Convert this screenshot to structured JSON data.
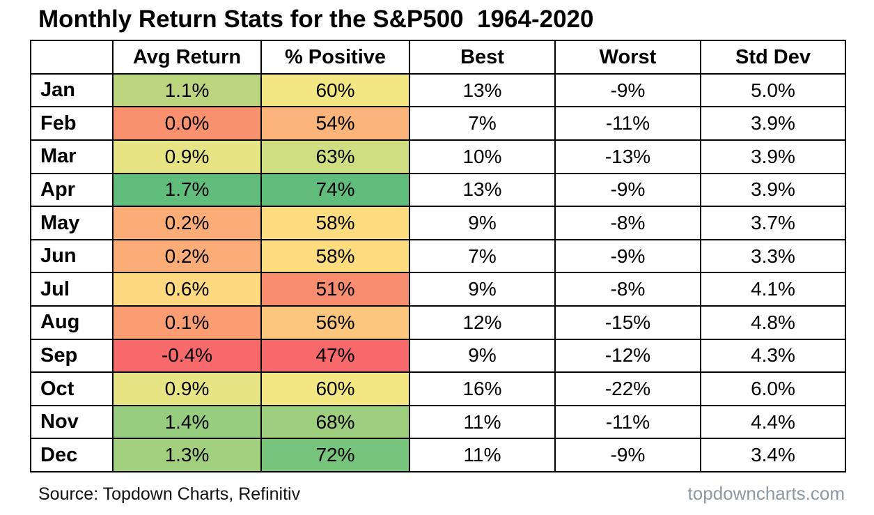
{
  "title": "Monthly Return Stats for the S&P500  1964-2020",
  "table": {
    "column_headers": [
      "",
      "Avg Return",
      "% Positive",
      "Best",
      "Worst",
      "Std Dev"
    ],
    "rows": [
      {
        "month": "Jan",
        "avg_return": "1.1%",
        "avg_return_bg": "#BCD67F",
        "pct_positive": "60%",
        "pct_positive_bg": "#F3E784",
        "best": "13%",
        "worst": "-9%",
        "std_dev": "5.0%"
      },
      {
        "month": "Feb",
        "avg_return": "0.0%",
        "avg_return_bg": "#F9916F",
        "pct_positive": "54%",
        "pct_positive_bg": "#FBB479",
        "best": "7%",
        "worst": "-11%",
        "std_dev": "3.9%"
      },
      {
        "month": "Mar",
        "avg_return": "0.9%",
        "avg_return_bg": "#E7E483",
        "pct_positive": "63%",
        "pct_positive_bg": "#CEDE81",
        "best": "10%",
        "worst": "-13%",
        "std_dev": "3.9%"
      },
      {
        "month": "Apr",
        "avg_return": "1.7%",
        "avg_return_bg": "#60BD7B",
        "pct_positive": "74%",
        "pct_positive_bg": "#60BD7B",
        "best": "13%",
        "worst": "-9%",
        "std_dev": "3.9%"
      },
      {
        "month": "May",
        "avg_return": "0.2%",
        "avg_return_bg": "#FBAC77",
        "pct_positive": "58%",
        "pct_positive_bg": "#FDDC80",
        "best": "9%",
        "worst": "-8%",
        "std_dev": "3.7%"
      },
      {
        "month": "Jun",
        "avg_return": "0.2%",
        "avg_return_bg": "#FBAC77",
        "pct_positive": "58%",
        "pct_positive_bg": "#FDDC80",
        "best": "7%",
        "worst": "-9%",
        "std_dev": "3.3%"
      },
      {
        "month": "Jul",
        "avg_return": "0.6%",
        "avg_return_bg": "#FED980",
        "pct_positive": "51%",
        "pct_positive_bg": "#F98D70",
        "best": "9%",
        "worst": "-8%",
        "std_dev": "4.1%"
      },
      {
        "month": "Aug",
        "avg_return": "0.1%",
        "avg_return_bg": "#FA9D72",
        "pct_positive": "56%",
        "pct_positive_bg": "#FCC67C",
        "best": "12%",
        "worst": "-15%",
        "std_dev": "4.8%"
      },
      {
        "month": "Sep",
        "avg_return": "-0.4%",
        "avg_return_bg": "#F8696B",
        "pct_positive": "47%",
        "pct_positive_bg": "#F8696B",
        "best": "9%",
        "worst": "-12%",
        "std_dev": "4.3%"
      },
      {
        "month": "Oct",
        "avg_return": "0.9%",
        "avg_return_bg": "#E7E483",
        "pct_positive": "60%",
        "pct_positive_bg": "#F3E784",
        "best": "16%",
        "worst": "-22%",
        "std_dev": "6.0%"
      },
      {
        "month": "Nov",
        "avg_return": "1.4%",
        "avg_return_bg": "#96CD7E",
        "pct_positive": "68%",
        "pct_positive_bg": "#9DCF7E",
        "best": "11%",
        "worst": "-11%",
        "std_dev": "4.4%"
      },
      {
        "month": "Dec",
        "avg_return": "1.3%",
        "avg_return_bg": "#A3D07F",
        "pct_positive": "72%",
        "pct_positive_bg": "#77C47C",
        "best": "11%",
        "worst": "-9%",
        "std_dev": "3.4%"
      }
    ]
  },
  "footer": {
    "source": "Source: Topdown Charts, Refinitiv",
    "website": "topdowncharts.com"
  },
  "colors": {
    "scale_min_red": "#F8696B",
    "scale_mid_yellow": "#FFEB84",
    "scale_max_green": "#63BE7B",
    "table_border": "#000000",
    "title_text": "#000000",
    "website_text": "#8C98A4",
    "background": "#FFFFFF"
  },
  "chart_data": {
    "type": "table",
    "title": "Monthly Return Stats for the S&P500  1964-2020",
    "categories": [
      "Jan",
      "Feb",
      "Mar",
      "Apr",
      "May",
      "Jun",
      "Jul",
      "Aug",
      "Sep",
      "Oct",
      "Nov",
      "Dec"
    ],
    "columns": [
      "Avg Return",
      "% Positive",
      "Best",
      "Worst",
      "Std Dev"
    ],
    "series": [
      {
        "name": "Avg Return",
        "unit": "%",
        "values": [
          1.1,
          0.0,
          0.9,
          1.7,
          0.2,
          0.2,
          0.6,
          0.1,
          -0.4,
          0.9,
          1.4,
          1.3
        ]
      },
      {
        "name": "% Positive",
        "unit": "%",
        "values": [
          60,
          54,
          63,
          74,
          58,
          58,
          51,
          56,
          47,
          60,
          68,
          72
        ]
      },
      {
        "name": "Best",
        "unit": "%",
        "values": [
          13,
          7,
          10,
          13,
          9,
          7,
          9,
          12,
          9,
          16,
          11,
          11
        ]
      },
      {
        "name": "Worst",
        "unit": "%",
        "values": [
          -9,
          -11,
          -13,
          -9,
          -8,
          -9,
          -8,
          -15,
          -12,
          -22,
          -11,
          -9
        ]
      },
      {
        "name": "Std Dev",
        "unit": "%",
        "values": [
          5.0,
          3.9,
          3.9,
          3.9,
          3.7,
          3.3,
          4.1,
          4.8,
          4.3,
          6.0,
          4.4,
          3.4
        ]
      }
    ],
    "conditional_formatting": "3-color scale (red #F8696B -> yellow #FFEB84 -> green #63BE7B) applied to Avg Return and % Positive columns",
    "source": "Topdown Charts, Refinitiv"
  }
}
